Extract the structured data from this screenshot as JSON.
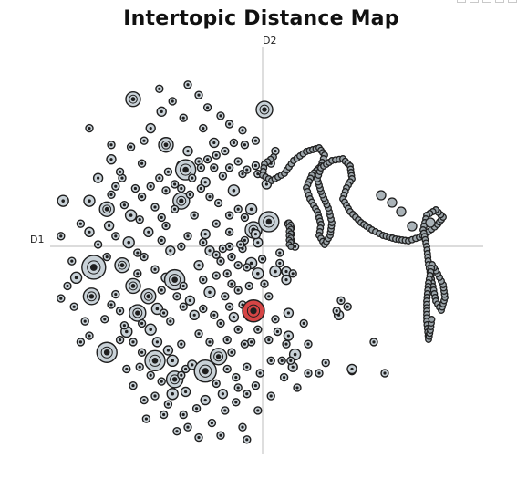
{
  "chart_data": {
    "type": "scatter",
    "title": "Intertopic Distance Map",
    "xlabel": "D1",
    "ylabel": "D2",
    "xlim": [
      -1.0,
      1.0
    ],
    "ylim": [
      -1.0,
      1.0
    ],
    "grid": false,
    "colors": {
      "topic": "#c9d2d8",
      "stroke": "#1f1f1f",
      "highlight": "#d64545",
      "axis": "#c8c8c8"
    },
    "highlight_index": 0,
    "bubbles": [
      [
        -0.05,
        -0.3,
        12
      ],
      [
        -0.6,
        0.72,
        8
      ],
      [
        -0.47,
        0.66,
        5
      ],
      [
        -0.35,
        0.79,
        4
      ],
      [
        0.0,
        0.67,
        9
      ],
      [
        -0.52,
        0.58,
        5
      ],
      [
        -0.45,
        0.5,
        8
      ],
      [
        -0.35,
        0.47,
        5
      ],
      [
        -0.23,
        0.51,
        5
      ],
      [
        -0.8,
        0.58,
        4
      ],
      [
        -0.7,
        0.43,
        5
      ],
      [
        -0.56,
        0.41,
        4
      ],
      [
        -0.38,
        0.4,
        5
      ],
      [
        -0.3,
        0.42,
        4
      ],
      [
        -0.09,
        0.5,
        4
      ],
      [
        -0.76,
        0.34,
        5
      ],
      [
        -0.36,
        0.38,
        11
      ],
      [
        -0.27,
        0.32,
        5
      ],
      [
        -0.45,
        0.28,
        4
      ],
      [
        -0.21,
        0.22,
        4
      ],
      [
        -0.14,
        0.28,
        6
      ],
      [
        -0.1,
        0.36,
        4
      ],
      [
        -0.06,
        0.19,
        6
      ],
      [
        -0.8,
        0.23,
        6
      ],
      [
        -0.72,
        0.19,
        8
      ],
      [
        -0.61,
        0.16,
        6
      ],
      [
        -0.5,
        0.2,
        4
      ],
      [
        -0.45,
        0.11,
        4
      ],
      [
        -0.38,
        0.23,
        9
      ],
      [
        -0.32,
        0.16,
        4
      ],
      [
        -0.27,
        0.07,
        5
      ],
      [
        -0.22,
        0.12,
        4
      ],
      [
        -0.19,
        0.0,
        4
      ],
      [
        -0.12,
        0.19,
        4
      ],
      [
        -0.05,
        0.09,
        9
      ],
      [
        0.02,
        0.13,
        11
      ],
      [
        -0.92,
        0.23,
        6
      ],
      [
        -0.93,
        0.06,
        4
      ],
      [
        -0.8,
        0.08,
        5
      ],
      [
        -0.71,
        0.11,
        5
      ],
      [
        -0.62,
        0.03,
        6
      ],
      [
        -0.53,
        0.08,
        5
      ],
      [
        -0.43,
        -0.01,
        5
      ],
      [
        -0.35,
        0.06,
        4
      ],
      [
        -0.16,
        0.08,
        4
      ],
      [
        -0.1,
        0.0,
        4
      ],
      [
        -0.03,
        0.03,
        5
      ],
      [
        -0.01,
        -0.05,
        4
      ],
      [
        -0.06,
        -0.07,
        6
      ],
      [
        -0.78,
        -0.09,
        13
      ],
      [
        -0.65,
        -0.08,
        8
      ],
      [
        -0.55,
        -0.04,
        4
      ],
      [
        -0.5,
        -0.1,
        4
      ],
      [
        -0.45,
        -0.14,
        5
      ],
      [
        -0.41,
        -0.15,
        11
      ],
      [
        -0.3,
        -0.08,
        5
      ],
      [
        -0.25,
        -0.01,
        5
      ],
      [
        -0.2,
        -0.06,
        4
      ],
      [
        -0.12,
        -0.08,
        4
      ],
      [
        -0.08,
        -0.09,
        4
      ],
      [
        -0.03,
        -0.12,
        6
      ],
      [
        0.0,
        -0.17,
        4
      ],
      [
        0.05,
        -0.11,
        6
      ],
      [
        0.1,
        -0.11,
        5
      ],
      [
        -0.86,
        -0.14,
        6
      ],
      [
        -0.79,
        -0.23,
        9
      ],
      [
        -0.68,
        -0.22,
        4
      ],
      [
        -0.6,
        -0.18,
        8
      ],
      [
        -0.53,
        -0.23,
        8
      ],
      [
        -0.49,
        -0.29,
        6
      ],
      [
        -0.58,
        -0.31,
        9
      ],
      [
        -0.4,
        -0.23,
        4
      ],
      [
        -0.34,
        -0.25,
        5
      ],
      [
        -0.25,
        -0.21,
        6
      ],
      [
        -0.18,
        -0.23,
        4
      ],
      [
        -0.12,
        -0.2,
        4
      ],
      [
        -0.93,
        -0.24,
        4
      ],
      [
        -0.87,
        -0.28,
        4
      ],
      [
        -0.73,
        -0.34,
        4
      ],
      [
        -0.66,
        -0.3,
        4
      ],
      [
        -0.63,
        -0.4,
        6
      ],
      [
        -0.52,
        -0.39,
        6
      ],
      [
        -0.43,
        -0.35,
        4
      ],
      [
        -0.32,
        -0.32,
        5
      ],
      [
        -0.2,
        -0.36,
        4
      ],
      [
        -0.14,
        -0.33,
        5
      ],
      [
        -0.1,
        -0.27,
        4
      ],
      [
        0.11,
        -0.31,
        5
      ],
      [
        0.34,
        -0.32,
        5
      ],
      [
        -0.84,
        -0.45,
        4
      ],
      [
        -0.72,
        -0.5,
        11
      ],
      [
        -0.6,
        -0.45,
        4
      ],
      [
        -0.49,
        -0.45,
        5
      ],
      [
        -0.44,
        -0.49,
        5
      ],
      [
        -0.25,
        -0.45,
        4
      ],
      [
        -0.17,
        -0.44,
        4
      ],
      [
        -0.06,
        -0.45,
        4
      ],
      [
        -0.15,
        -0.5,
        4
      ],
      [
        -0.21,
        -0.52,
        9
      ],
      [
        0.02,
        -0.44,
        4
      ],
      [
        0.06,
        -0.4,
        4
      ],
      [
        0.1,
        -0.46,
        4
      ],
      [
        0.11,
        -0.42,
        5
      ],
      [
        -0.5,
        -0.54,
        11
      ],
      [
        -0.57,
        -0.57,
        4
      ],
      [
        -0.42,
        -0.54,
        6
      ],
      [
        -0.36,
        -0.58,
        4
      ],
      [
        -0.33,
        -0.56,
        5
      ],
      [
        -0.29,
        -0.62,
        4
      ],
      [
        -0.47,
        -0.64,
        4
      ],
      [
        -0.41,
        -0.63,
        9
      ],
      [
        -0.27,
        -0.59,
        12
      ],
      [
        -0.17,
        -0.58,
        4
      ],
      [
        -0.13,
        -0.62,
        4
      ],
      [
        -0.08,
        -0.57,
        4
      ],
      [
        -0.04,
        -0.66,
        4
      ],
      [
        0.09,
        -0.62,
        4
      ],
      [
        0.13,
        -0.57,
        5
      ],
      [
        0.14,
        -0.51,
        6
      ],
      [
        0.12,
        -0.54,
        4
      ],
      [
        -0.55,
        -0.73,
        4
      ],
      [
        -0.5,
        -0.71,
        4
      ],
      [
        -0.42,
        -0.7,
        6
      ],
      [
        -0.36,
        -0.69,
        5
      ],
      [
        -0.27,
        -0.73,
        5
      ],
      [
        -0.19,
        -0.7,
        5
      ],
      [
        -0.08,
        -0.7,
        4
      ],
      [
        -0.54,
        -0.82,
        4
      ],
      [
        -0.46,
        -0.8,
        4
      ],
      [
        -0.37,
        -0.8,
        4
      ],
      [
        -0.35,
        -0.86,
        4
      ],
      [
        -0.24,
        -0.84,
        4
      ],
      [
        -0.1,
        -0.86,
        4
      ],
      [
        0.15,
        -0.67,
        4
      ],
      [
        0.2,
        -0.6,
        4
      ],
      [
        0.25,
        -0.6,
        4
      ],
      [
        0.4,
        -0.59,
        4
      ],
      [
        0.55,
        -0.6,
        4
      ],
      [
        0.18,
        -0.36,
        4
      ],
      [
        0.28,
        -0.55,
        4
      ],
      [
        0.2,
        -0.46,
        4
      ],
      [
        0.5,
        -0.45,
        4
      ],
      [
        0.1,
        -0.15,
        5
      ],
      [
        0.07,
        -0.07,
        4
      ],
      [
        0.13,
        -0.12,
        4
      ],
      [
        0.33,
        -0.3,
        4
      ],
      [
        0.35,
        -0.25,
        4
      ],
      [
        0.38,
        -0.28,
        4
      ],
      [
        0.08,
        -0.54,
        4
      ],
      [
        0.4,
        -0.58,
        5
      ],
      [
        0.01,
        0.31,
        5
      ],
      [
        -0.03,
        0.36,
        4
      ],
      [
        0.03,
        0.41,
        4
      ],
      [
        0.05,
        0.47,
        4
      ],
      [
        -0.04,
        0.4,
        4
      ],
      [
        0.12,
        0.04,
        4
      ],
      [
        0.12,
        0.07,
        4
      ],
      [
        0.12,
        0.1,
        4
      ],
      [
        0.14,
        0.01,
        4
      ],
      [
        0.11,
        0.12,
        4
      ],
      [
        -0.04,
        0.07,
        5
      ],
      [
        -0.16,
        0.01,
        4
      ],
      [
        -0.09,
        0.04,
        4
      ],
      [
        -0.11,
        0.02,
        4
      ],
      [
        0.07,
        -0.02,
        4
      ],
      [
        -0.68,
        0.3,
        4
      ],
      [
        -0.65,
        0.34,
        4
      ],
      [
        -0.59,
        0.29,
        4
      ],
      [
        -0.56,
        0.25,
        4
      ],
      [
        -0.52,
        0.3,
        4
      ],
      [
        -0.48,
        0.34,
        4
      ],
      [
        -0.44,
        0.37,
        4
      ],
      [
        -0.41,
        0.31,
        4
      ],
      [
        -0.38,
        0.29,
        4
      ],
      [
        -0.33,
        0.34,
        4
      ],
      [
        -0.29,
        0.39,
        4
      ],
      [
        -0.26,
        0.43,
        4
      ],
      [
        -0.22,
        0.45,
        4
      ],
      [
        -0.18,
        0.47,
        4
      ],
      [
        -0.14,
        0.51,
        4
      ],
      [
        -0.23,
        0.39,
        4
      ],
      [
        -0.19,
        0.35,
        4
      ],
      [
        -0.16,
        0.39,
        4
      ],
      [
        -0.12,
        0.42,
        4
      ],
      [
        -0.08,
        0.38,
        4
      ],
      [
        -0.7,
        0.26,
        4
      ],
      [
        -0.64,
        0.21,
        4
      ],
      [
        -0.57,
        0.14,
        4
      ],
      [
        -0.47,
        0.15,
        4
      ],
      [
        -0.41,
        0.19,
        4
      ],
      [
        -0.34,
        0.26,
        4
      ],
      [
        -0.29,
        0.29,
        4
      ],
      [
        -0.25,
        0.25,
        4
      ],
      [
        -0.16,
        0.16,
        4
      ],
      [
        -0.09,
        0.15,
        4
      ],
      [
        -0.84,
        0.12,
        4
      ],
      [
        -0.76,
        0.02,
        4
      ],
      [
        -0.68,
        0.06,
        4
      ],
      [
        -0.58,
        -0.02,
        4
      ],
      [
        -0.47,
        0.04,
        4
      ],
      [
        -0.38,
        0.01,
        4
      ],
      [
        -0.28,
        0.03,
        4
      ],
      [
        -0.22,
        -0.03,
        4
      ],
      [
        -0.15,
        -0.04,
        4
      ],
      [
        -0.17,
        -0.12,
        4
      ],
      [
        -0.88,
        -0.06,
        4
      ],
      [
        -0.72,
        -0.04,
        4
      ],
      [
        -0.58,
        -0.12,
        4
      ],
      [
        -0.47,
        -0.2,
        4
      ],
      [
        -0.37,
        -0.18,
        4
      ],
      [
        -0.28,
        -0.15,
        4
      ],
      [
        -0.22,
        -0.13,
        4
      ],
      [
        -0.15,
        -0.17,
        4
      ],
      [
        -0.07,
        -0.18,
        4
      ],
      [
        0.02,
        -0.23,
        4
      ],
      [
        -0.9,
        -0.18,
        4
      ],
      [
        -0.82,
        -0.35,
        4
      ],
      [
        -0.7,
        -0.27,
        4
      ],
      [
        -0.64,
        -0.37,
        4
      ],
      [
        -0.56,
        -0.36,
        4
      ],
      [
        -0.46,
        -0.31,
        4
      ],
      [
        -0.37,
        -0.28,
        4
      ],
      [
        -0.28,
        -0.29,
        4
      ],
      [
        -0.23,
        -0.32,
        4
      ],
      [
        -0.16,
        -0.28,
        4
      ],
      [
        -0.07,
        -0.33,
        4
      ],
      [
        -0.03,
        -0.39,
        4
      ],
      [
        0.05,
        -0.34,
        4
      ],
      [
        -0.8,
        -0.42,
        4
      ],
      [
        -0.66,
        -0.44,
        4
      ],
      [
        -0.56,
        -0.5,
        4
      ],
      [
        -0.38,
        -0.46,
        4
      ],
      [
        -0.3,
        -0.41,
        4
      ],
      [
        -0.12,
        -0.39,
        4
      ],
      [
        -0.09,
        -0.46,
        4
      ],
      [
        -0.63,
        -0.58,
        4
      ],
      [
        -0.52,
        -0.61,
        4
      ],
      [
        -0.38,
        -0.61,
        4
      ],
      [
        -0.22,
        -0.65,
        4
      ],
      [
        -0.12,
        -0.67,
        4
      ],
      [
        -0.02,
        -0.6,
        4
      ],
      [
        0.03,
        -0.54,
        4
      ],
      [
        -0.6,
        -0.66,
        4
      ],
      [
        -0.44,
        -0.75,
        4
      ],
      [
        -0.31,
        -0.77,
        4
      ],
      [
        -0.18,
        -0.78,
        4
      ],
      [
        -0.13,
        -0.74,
        4
      ],
      [
        -0.03,
        -0.78,
        4
      ],
      [
        0.03,
        -0.71,
        4
      ],
      [
        -0.4,
        -0.88,
        4
      ],
      [
        -0.3,
        -0.91,
        4
      ],
      [
        -0.2,
        -0.9,
        4
      ],
      [
        -0.08,
        -0.92,
        4
      ],
      [
        -0.28,
        0.58,
        4
      ],
      [
        -0.37,
        0.63,
        4
      ],
      [
        -0.16,
        0.6,
        4
      ],
      [
        -0.1,
        0.57,
        4
      ],
      [
        -0.04,
        0.52,
        4
      ],
      [
        -0.61,
        0.49,
        4
      ],
      [
        -0.66,
        0.37,
        4
      ],
      [
        -0.55,
        0.52,
        4
      ],
      [
        -0.26,
        0.68,
        4
      ],
      [
        -0.42,
        0.71,
        4
      ],
      [
        -0.48,
        0.77,
        4
      ],
      [
        -0.3,
        0.74,
        4
      ],
      [
        -0.2,
        0.64,
        4
      ],
      [
        -0.7,
        0.5,
        4
      ]
    ]
  }
}
